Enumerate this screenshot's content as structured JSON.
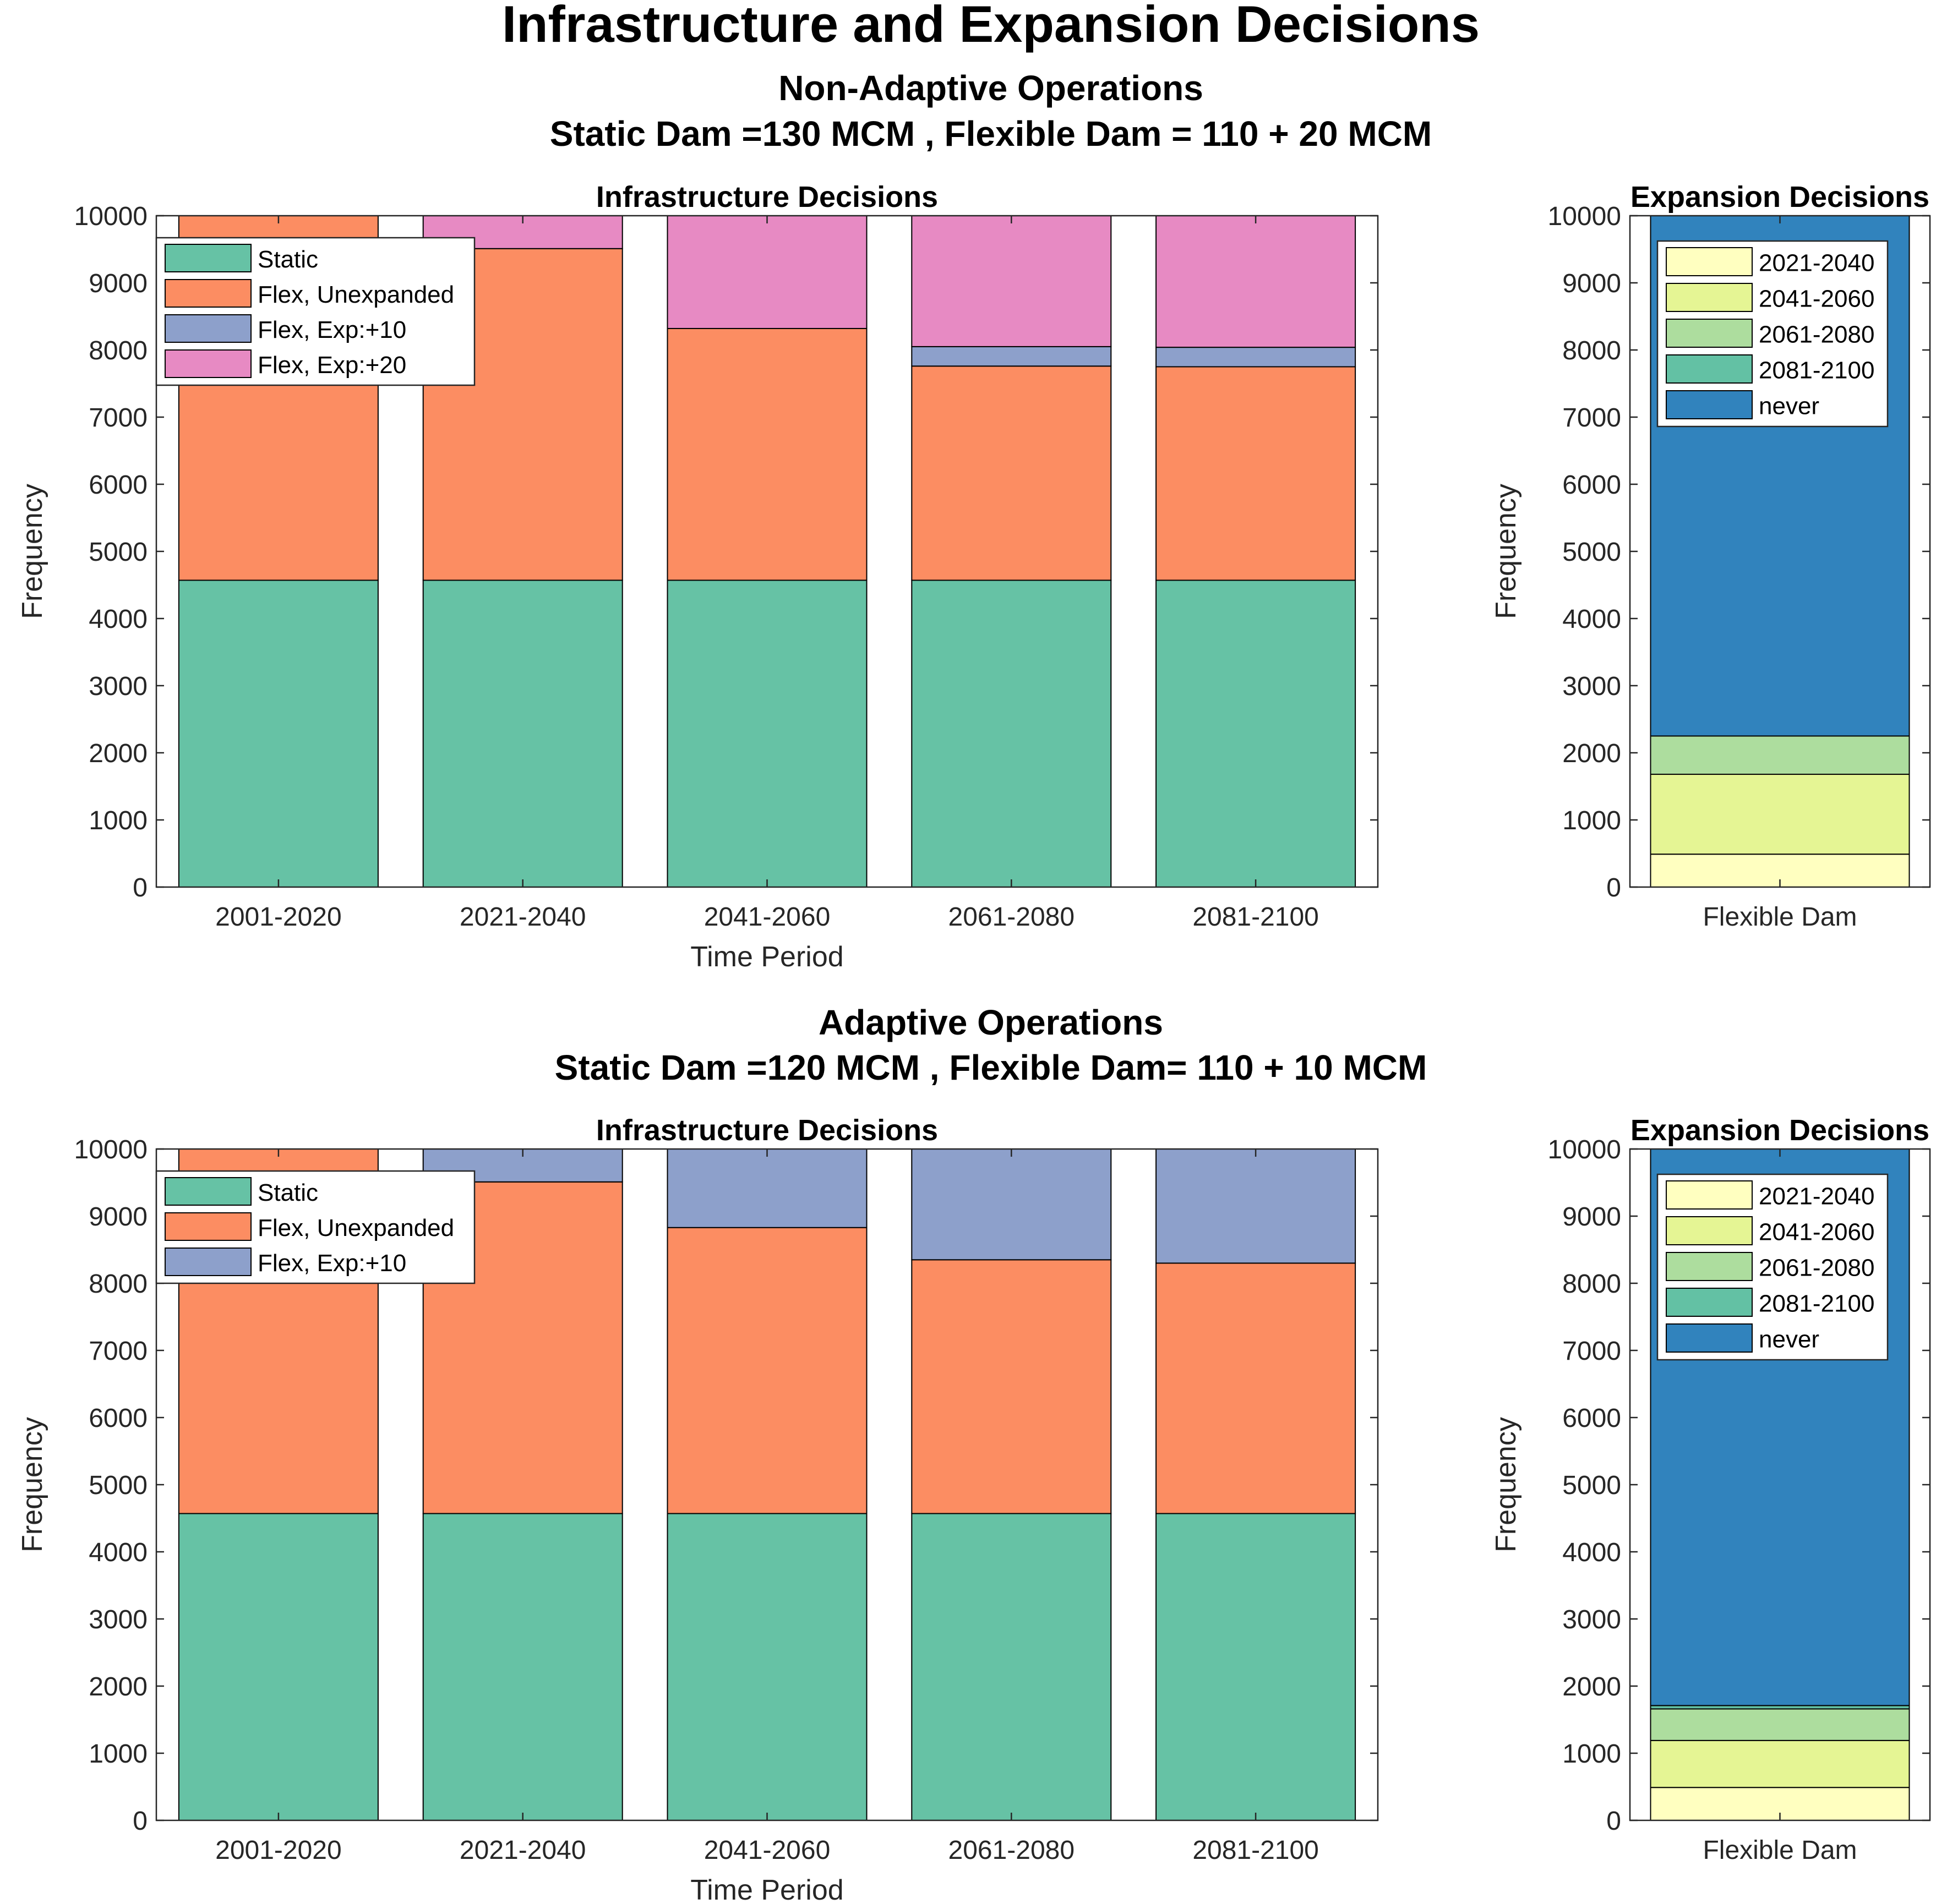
{
  "figure": {
    "title": "Infrastructure and Expansion Decisions",
    "sections": [
      {
        "title": "Non-Adaptive Operations",
        "subtitle": "Static Dam =130 MCM , Flexible Dam = 110 + 20 MCM"
      },
      {
        "title": "Adaptive Operations",
        "subtitle": "Static Dam =120 MCM , Flexible Dam= 110 + 10 MCM"
      }
    ]
  },
  "colors": {
    "Static": "#66c2a5",
    "Flex, Unexpanded": "#fc8d62",
    "Flex, Exp:+10": "#8da0cb",
    "Flex, Exp:+20": "#e78ac3",
    "2021-2040": "#ffffc0",
    "2041-2060": "#e5f594",
    "2061-2080": "#addd9e",
    "2081-2100": "#63c1a4",
    "never": "#3183bd"
  },
  "chart_data": [
    {
      "type": "bar",
      "stacked": true,
      "title": "Infrastructure Decisions",
      "xlabel": "Time Period",
      "ylabel": "Frequency",
      "ylim": [
        0,
        10000
      ],
      "yticks": [
        0,
        1000,
        2000,
        3000,
        4000,
        5000,
        6000,
        7000,
        8000,
        9000,
        10000
      ],
      "categories": [
        "2001-2020",
        "2021-2040",
        "2041-2060",
        "2061-2080",
        "2081-2100"
      ],
      "legend_position": "top-left",
      "series": [
        {
          "name": "Static",
          "values": [
            4570,
            4570,
            4570,
            4570,
            4570
          ]
        },
        {
          "name": "Flex, Unexpanded",
          "values": [
            5430,
            4940,
            3750,
            3190,
            3180
          ]
        },
        {
          "name": "Flex, Exp:+10",
          "values": [
            0,
            0,
            0,
            290,
            290
          ]
        },
        {
          "name": "Flex, Exp:+20",
          "values": [
            0,
            490,
            1680,
            1950,
            1960
          ]
        }
      ]
    },
    {
      "type": "bar",
      "stacked": true,
      "title": "Expansion Decisions",
      "xlabel": "",
      "ylabel": "Frequency",
      "ylim": [
        0,
        10000
      ],
      "yticks": [
        0,
        1000,
        2000,
        3000,
        4000,
        5000,
        6000,
        7000,
        8000,
        9000,
        10000
      ],
      "categories": [
        "Flexible Dam"
      ],
      "legend_position": "top-right",
      "series": [
        {
          "name": "2021-2040",
          "values": [
            490
          ]
        },
        {
          "name": "2041-2060",
          "values": [
            1190
          ]
        },
        {
          "name": "2061-2080",
          "values": [
            570
          ]
        },
        {
          "name": "2081-2100",
          "values": [
            0
          ]
        },
        {
          "name": "never",
          "values": [
            7750
          ]
        }
      ]
    },
    {
      "type": "bar",
      "stacked": true,
      "title": "Infrastructure Decisions",
      "xlabel": "Time Period",
      "ylabel": "Frequency",
      "ylim": [
        0,
        10000
      ],
      "yticks": [
        0,
        1000,
        2000,
        3000,
        4000,
        5000,
        6000,
        7000,
        8000,
        9000,
        10000
      ],
      "categories": [
        "2001-2020",
        "2021-2040",
        "2041-2060",
        "2061-2080",
        "2081-2100"
      ],
      "legend_position": "top-left",
      "series": [
        {
          "name": "Static",
          "values": [
            4570,
            4570,
            4570,
            4570,
            4570
          ]
        },
        {
          "name": "Flex, Unexpanded",
          "values": [
            5430,
            4940,
            4260,
            3780,
            3730
          ]
        },
        {
          "name": "Flex, Exp:+10",
          "values": [
            0,
            490,
            1170,
            1650,
            1700
          ]
        }
      ]
    },
    {
      "type": "bar",
      "stacked": true,
      "title": "Expansion Decisions",
      "xlabel": "",
      "ylabel": "Frequency",
      "ylim": [
        0,
        10000
      ],
      "yticks": [
        0,
        1000,
        2000,
        3000,
        4000,
        5000,
        6000,
        7000,
        8000,
        9000,
        10000
      ],
      "categories": [
        "Flexible Dam"
      ],
      "legend_position": "top-right",
      "series": [
        {
          "name": "2021-2040",
          "values": [
            490
          ]
        },
        {
          "name": "2041-2060",
          "values": [
            700
          ]
        },
        {
          "name": "2061-2080",
          "values": [
            470
          ]
        },
        {
          "name": "2081-2100",
          "values": [
            50
          ]
        },
        {
          "name": "never",
          "values": [
            8290
          ]
        }
      ]
    }
  ]
}
